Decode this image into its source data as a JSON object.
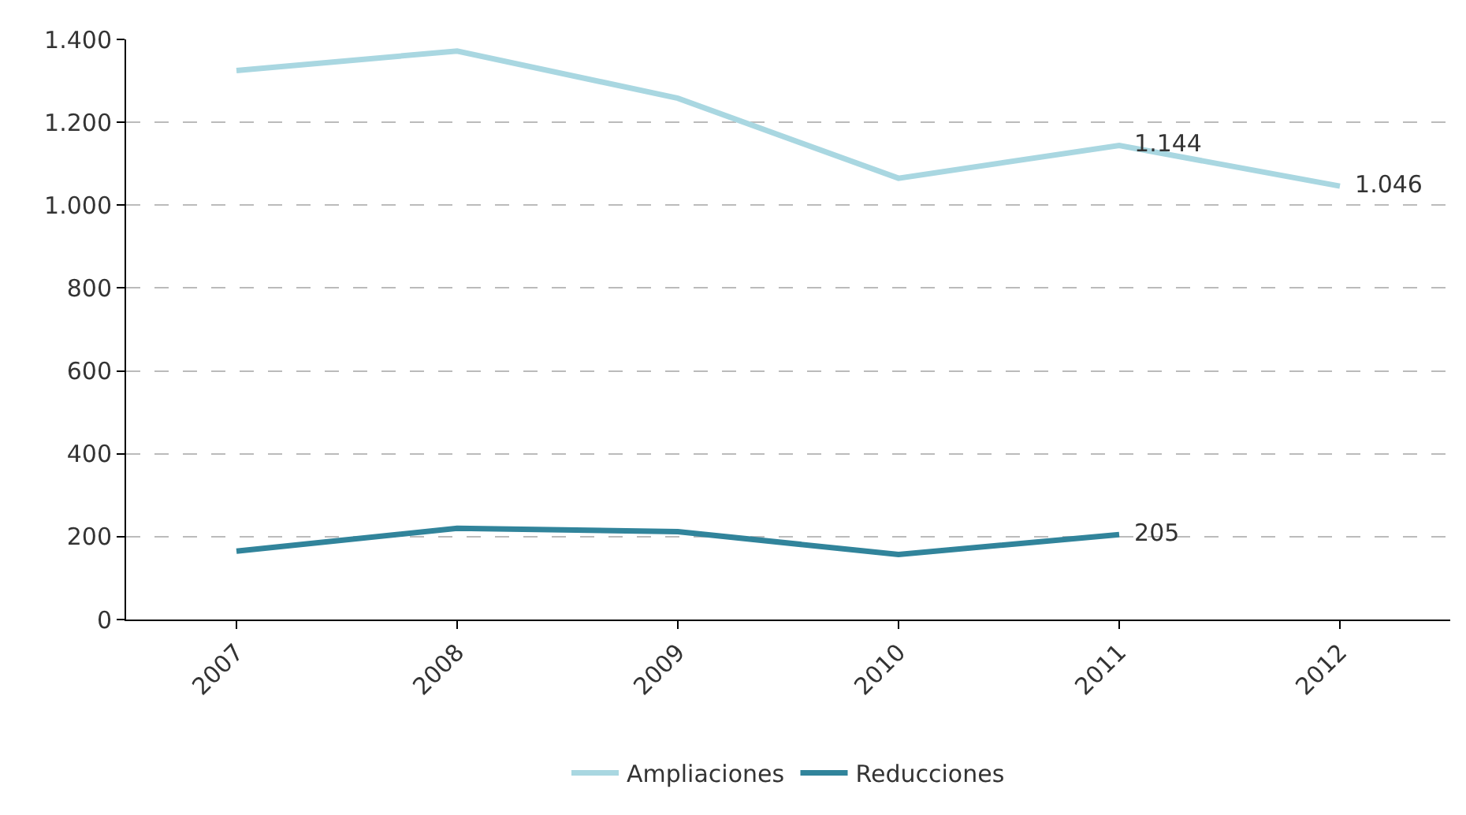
{
  "chart_data": {
    "type": "line",
    "categories": [
      "2007",
      "2008",
      "2009",
      "2010",
      "2011",
      "2012"
    ],
    "series": [
      {
        "name": "Ampliaciones",
        "color": "#a9d7e1",
        "values": [
          1325,
          1372,
          1258,
          1065,
          1144,
          1046
        ],
        "value_labels": [
          null,
          null,
          null,
          null,
          "1.144",
          "1.046"
        ]
      },
      {
        "name": "Reducciones",
        "color": "#31849b",
        "values": [
          165,
          220,
          212,
          157,
          205,
          null
        ],
        "value_labels": [
          null,
          null,
          null,
          null,
          "205",
          null
        ]
      }
    ],
    "ylim": [
      0,
      1400
    ],
    "yticks": [
      0,
      200,
      400,
      600,
      800,
      {
        "value": 1000,
        "label": "1.000"
      },
      {
        "value": 1200,
        "label": "1.200"
      },
      {
        "value": 1400,
        "label": "1.400"
      }
    ],
    "grid": "y",
    "legend": "bottom",
    "marker": "none",
    "line_style": "solid"
  }
}
